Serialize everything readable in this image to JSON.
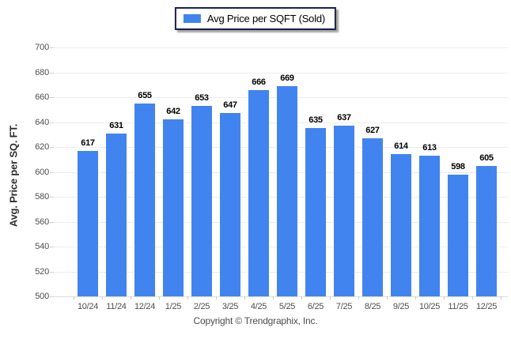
{
  "legend": {
    "label": "Avg Price per SQFT (Sold)"
  },
  "footer": {
    "text": "Copyright © Trendgraphix, Inc."
  },
  "colors": {
    "bar": "#4184ef",
    "legend_border": "#1a2050",
    "gridline": "#ededed",
    "axis_text": "#4f4f4f",
    "value_label": "#000000"
  },
  "chart_data": {
    "type": "bar",
    "title": "",
    "legend": [
      "Avg Price per SQFT (Sold)"
    ],
    "legend_position": "top-center",
    "categories": [
      "10/24",
      "11/24",
      "12/24",
      "1/25",
      "2/25",
      "3/25",
      "4/25",
      "5/25",
      "6/25",
      "7/25",
      "8/25",
      "9/25",
      "10/25",
      "11/25",
      "12/25"
    ],
    "values": [
      617,
      631,
      655,
      642,
      653,
      647,
      666,
      669,
      635,
      637,
      627,
      614,
      613,
      598,
      605
    ],
    "xlabel": "",
    "ylabel": "Avg. Price per SQ. FT.",
    "ylim": [
      500,
      700
    ],
    "ytick_step": 20,
    "grid": true,
    "value_labels": true
  }
}
